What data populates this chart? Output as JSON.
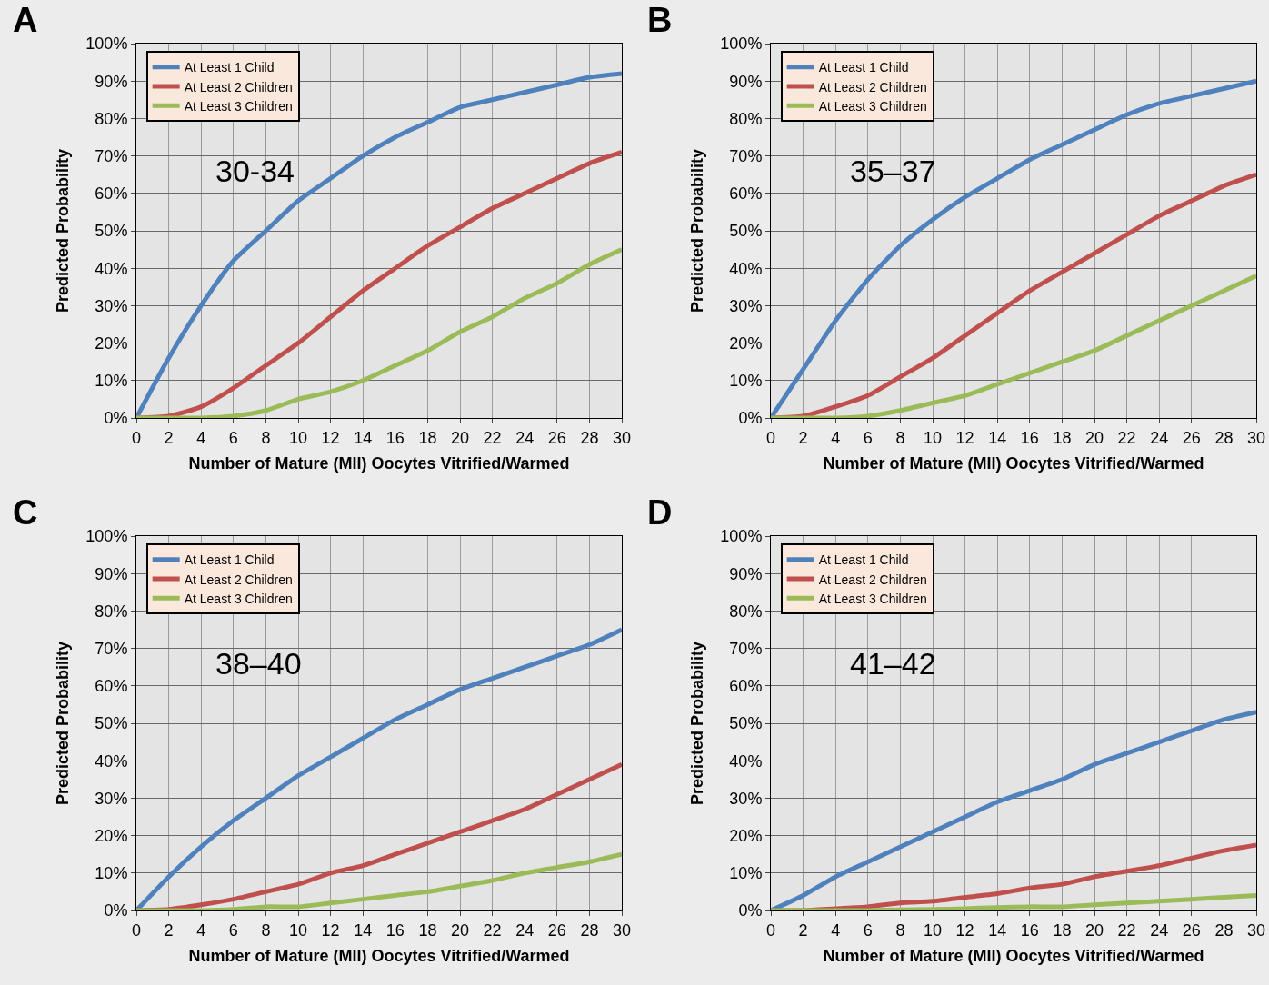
{
  "chart_data": [
    {
      "type": "line",
      "title": "A",
      "annotations": [
        "30-34"
      ],
      "xlabel": "Number of Mature (MII) Oocytes Vitrified/Warmed",
      "ylabel": "Predicted Probability",
      "x": [
        0,
        2,
        4,
        6,
        8,
        10,
        12,
        14,
        16,
        18,
        20,
        22,
        24,
        26,
        28,
        30
      ],
      "xlim": [
        0,
        30
      ],
      "xticks": [
        0,
        2,
        4,
        6,
        8,
        10,
        12,
        14,
        16,
        18,
        20,
        22,
        24,
        26,
        28,
        30
      ],
      "ylim": [
        0,
        100
      ],
      "yticks": [
        {
          "value": 0,
          "label": "0%"
        },
        {
          "value": 10,
          "label": "10%"
        },
        {
          "value": 20,
          "label": "20%"
        },
        {
          "value": 30,
          "label": "30%"
        },
        {
          "value": 40,
          "label": "40%"
        },
        {
          "value": 50,
          "label": "50%"
        },
        {
          "value": 60,
          "label": "60%"
        },
        {
          "value": 70,
          "label": "70%"
        },
        {
          "value": 80,
          "label": "80%"
        },
        {
          "value": 90,
          "label": "90%"
        },
        {
          "value": 100,
          "label": "100%"
        }
      ],
      "grid": true,
      "legend": "top left",
      "marker": "none",
      "line_style": "solid",
      "series": [
        {
          "name": "At Least 1 Child",
          "color": "#4f81bd",
          "values": [
            0,
            16,
            30,
            42,
            50,
            58,
            64,
            70,
            75,
            79,
            83,
            85,
            87,
            89,
            91,
            92
          ]
        },
        {
          "name": "At Least 2 Children",
          "color": "#c0504d",
          "values": [
            0,
            0.5,
            3,
            8,
            14,
            20,
            27,
            34,
            40,
            46,
            51,
            56,
            60,
            64,
            68,
            71
          ]
        },
        {
          "name": "At Least 3 Children",
          "color": "#9bbb59",
          "values": [
            0,
            0,
            0,
            0.5,
            2,
            5,
            7,
            10,
            14,
            18,
            23,
            27,
            32,
            36,
            41,
            45
          ]
        }
      ]
    },
    {
      "type": "line",
      "title": "B",
      "annotations": [
        "35–37"
      ],
      "xlabel": "Number of Mature (MII) Oocytes Vitrified/Warmed",
      "ylabel": "Predicted Probability",
      "x": [
        0,
        2,
        4,
        6,
        8,
        10,
        12,
        14,
        16,
        18,
        20,
        22,
        24,
        26,
        28,
        30
      ],
      "xlim": [
        0,
        30
      ],
      "xticks": [
        0,
        2,
        4,
        6,
        8,
        10,
        12,
        14,
        16,
        18,
        20,
        22,
        24,
        26,
        28,
        30
      ],
      "ylim": [
        0,
        100
      ],
      "yticks": [
        {
          "value": 0,
          "label": "0%"
        },
        {
          "value": 10,
          "label": "10%"
        },
        {
          "value": 20,
          "label": "20%"
        },
        {
          "value": 30,
          "label": "30%"
        },
        {
          "value": 40,
          "label": "40%"
        },
        {
          "value": 50,
          "label": "50%"
        },
        {
          "value": 60,
          "label": "60%"
        },
        {
          "value": 70,
          "label": "70%"
        },
        {
          "value": 80,
          "label": "80%"
        },
        {
          "value": 90,
          "label": "90%"
        },
        {
          "value": 100,
          "label": "100%"
        }
      ],
      "grid": true,
      "legend": "top left",
      "marker": "none",
      "line_style": "solid",
      "series": [
        {
          "name": "At Least 1 Child",
          "color": "#4f81bd",
          "values": [
            0,
            13,
            26,
            37,
            46,
            53,
            59,
            64,
            69,
            73,
            77,
            81,
            84,
            86,
            88,
            90
          ]
        },
        {
          "name": "At Least 2 Children",
          "color": "#c0504d",
          "values": [
            0,
            0.5,
            3,
            6,
            11,
            16,
            22,
            28,
            34,
            39,
            44,
            49,
            54,
            58,
            62,
            65
          ]
        },
        {
          "name": "At Least 3 Children",
          "color": "#9bbb59",
          "values": [
            0,
            0,
            0,
            0.5,
            2,
            4,
            6,
            9,
            12,
            15,
            18,
            22,
            26,
            30,
            34,
            38
          ]
        }
      ]
    },
    {
      "type": "line",
      "title": "C",
      "annotations": [
        "38–40"
      ],
      "xlabel": "Number of Mature (MII) Oocytes Vitrified/Warmed",
      "ylabel": "Predicted Probability",
      "x": [
        0,
        2,
        4,
        6,
        8,
        10,
        12,
        14,
        16,
        18,
        20,
        22,
        24,
        26,
        28,
        30
      ],
      "xlim": [
        0,
        30
      ],
      "xticks": [
        0,
        2,
        4,
        6,
        8,
        10,
        12,
        14,
        16,
        18,
        20,
        22,
        24,
        26,
        28,
        30
      ],
      "ylim": [
        0,
        100
      ],
      "yticks": [
        {
          "value": 0,
          "label": "0%"
        },
        {
          "value": 10,
          "label": "10%"
        },
        {
          "value": 20,
          "label": "20%"
        },
        {
          "value": 30,
          "label": "30%"
        },
        {
          "value": 40,
          "label": "40%"
        },
        {
          "value": 50,
          "label": "50%"
        },
        {
          "value": 60,
          "label": "60%"
        },
        {
          "value": 70,
          "label": "70%"
        },
        {
          "value": 80,
          "label": "80%"
        },
        {
          "value": 90,
          "label": "90%"
        },
        {
          "value": 100,
          "label": "100%"
        }
      ],
      "grid": true,
      "legend": "top left",
      "marker": "none",
      "line_style": "solid",
      "series": [
        {
          "name": "At Least 1 Child",
          "color": "#4f81bd",
          "values": [
            0,
            9,
            17,
            24,
            30,
            36,
            41,
            46,
            51,
            55,
            59,
            62,
            65,
            68,
            71,
            75
          ]
        },
        {
          "name": "At Least 2 Children",
          "color": "#c0504d",
          "values": [
            0,
            0.3,
            1.5,
            3,
            5,
            7,
            10,
            12,
            15,
            18,
            21,
            24,
            27,
            31,
            35,
            39
          ]
        },
        {
          "name": "At Least 3 Children",
          "color": "#9bbb59",
          "values": [
            0,
            0,
            0,
            0.3,
            1,
            1,
            2,
            3,
            4,
            5,
            6.5,
            8,
            10,
            11.5,
            13,
            15
          ]
        }
      ]
    },
    {
      "type": "line",
      "title": "D",
      "annotations": [
        "41–42"
      ],
      "xlabel": "Number of Mature (MII) Oocytes Vitrified/Warmed",
      "ylabel": "Predicted Probability",
      "x": [
        0,
        2,
        4,
        6,
        8,
        10,
        12,
        14,
        16,
        18,
        20,
        22,
        24,
        26,
        28,
        30
      ],
      "xlim": [
        0,
        30
      ],
      "xticks": [
        0,
        2,
        4,
        6,
        8,
        10,
        12,
        14,
        16,
        18,
        20,
        22,
        24,
        26,
        28,
        30
      ],
      "ylim": [
        0,
        100
      ],
      "yticks": [
        {
          "value": 0,
          "label": "0%"
        },
        {
          "value": 10,
          "label": "10%"
        },
        {
          "value": 20,
          "label": "20%"
        },
        {
          "value": 30,
          "label": "30%"
        },
        {
          "value": 40,
          "label": "40%"
        },
        {
          "value": 50,
          "label": "50%"
        },
        {
          "value": 60,
          "label": "60%"
        },
        {
          "value": 70,
          "label": "70%"
        },
        {
          "value": 80,
          "label": "80%"
        },
        {
          "value": 90,
          "label": "90%"
        },
        {
          "value": 100,
          "label": "100%"
        }
      ],
      "grid": true,
      "legend": "top left",
      "marker": "none",
      "line_style": "solid",
      "series": [
        {
          "name": "At Least 1 Child",
          "color": "#4f81bd",
          "values": [
            0,
            4,
            9,
            13,
            17,
            21,
            25,
            29,
            32,
            35,
            39,
            42,
            45,
            48,
            51,
            53
          ]
        },
        {
          "name": "At Least 2 Children",
          "color": "#c0504d",
          "values": [
            0,
            0,
            0.5,
            1,
            2,
            2.5,
            3.5,
            4.5,
            6,
            7,
            9,
            10.5,
            12,
            14,
            16,
            17.5
          ]
        },
        {
          "name": "At Least 3 Children",
          "color": "#9bbb59",
          "values": [
            0,
            0,
            0,
            0,
            0.2,
            0.3,
            0.5,
            0.8,
            1,
            1,
            1.5,
            2,
            2.5,
            3,
            3.5,
            4
          ]
        }
      ]
    }
  ]
}
